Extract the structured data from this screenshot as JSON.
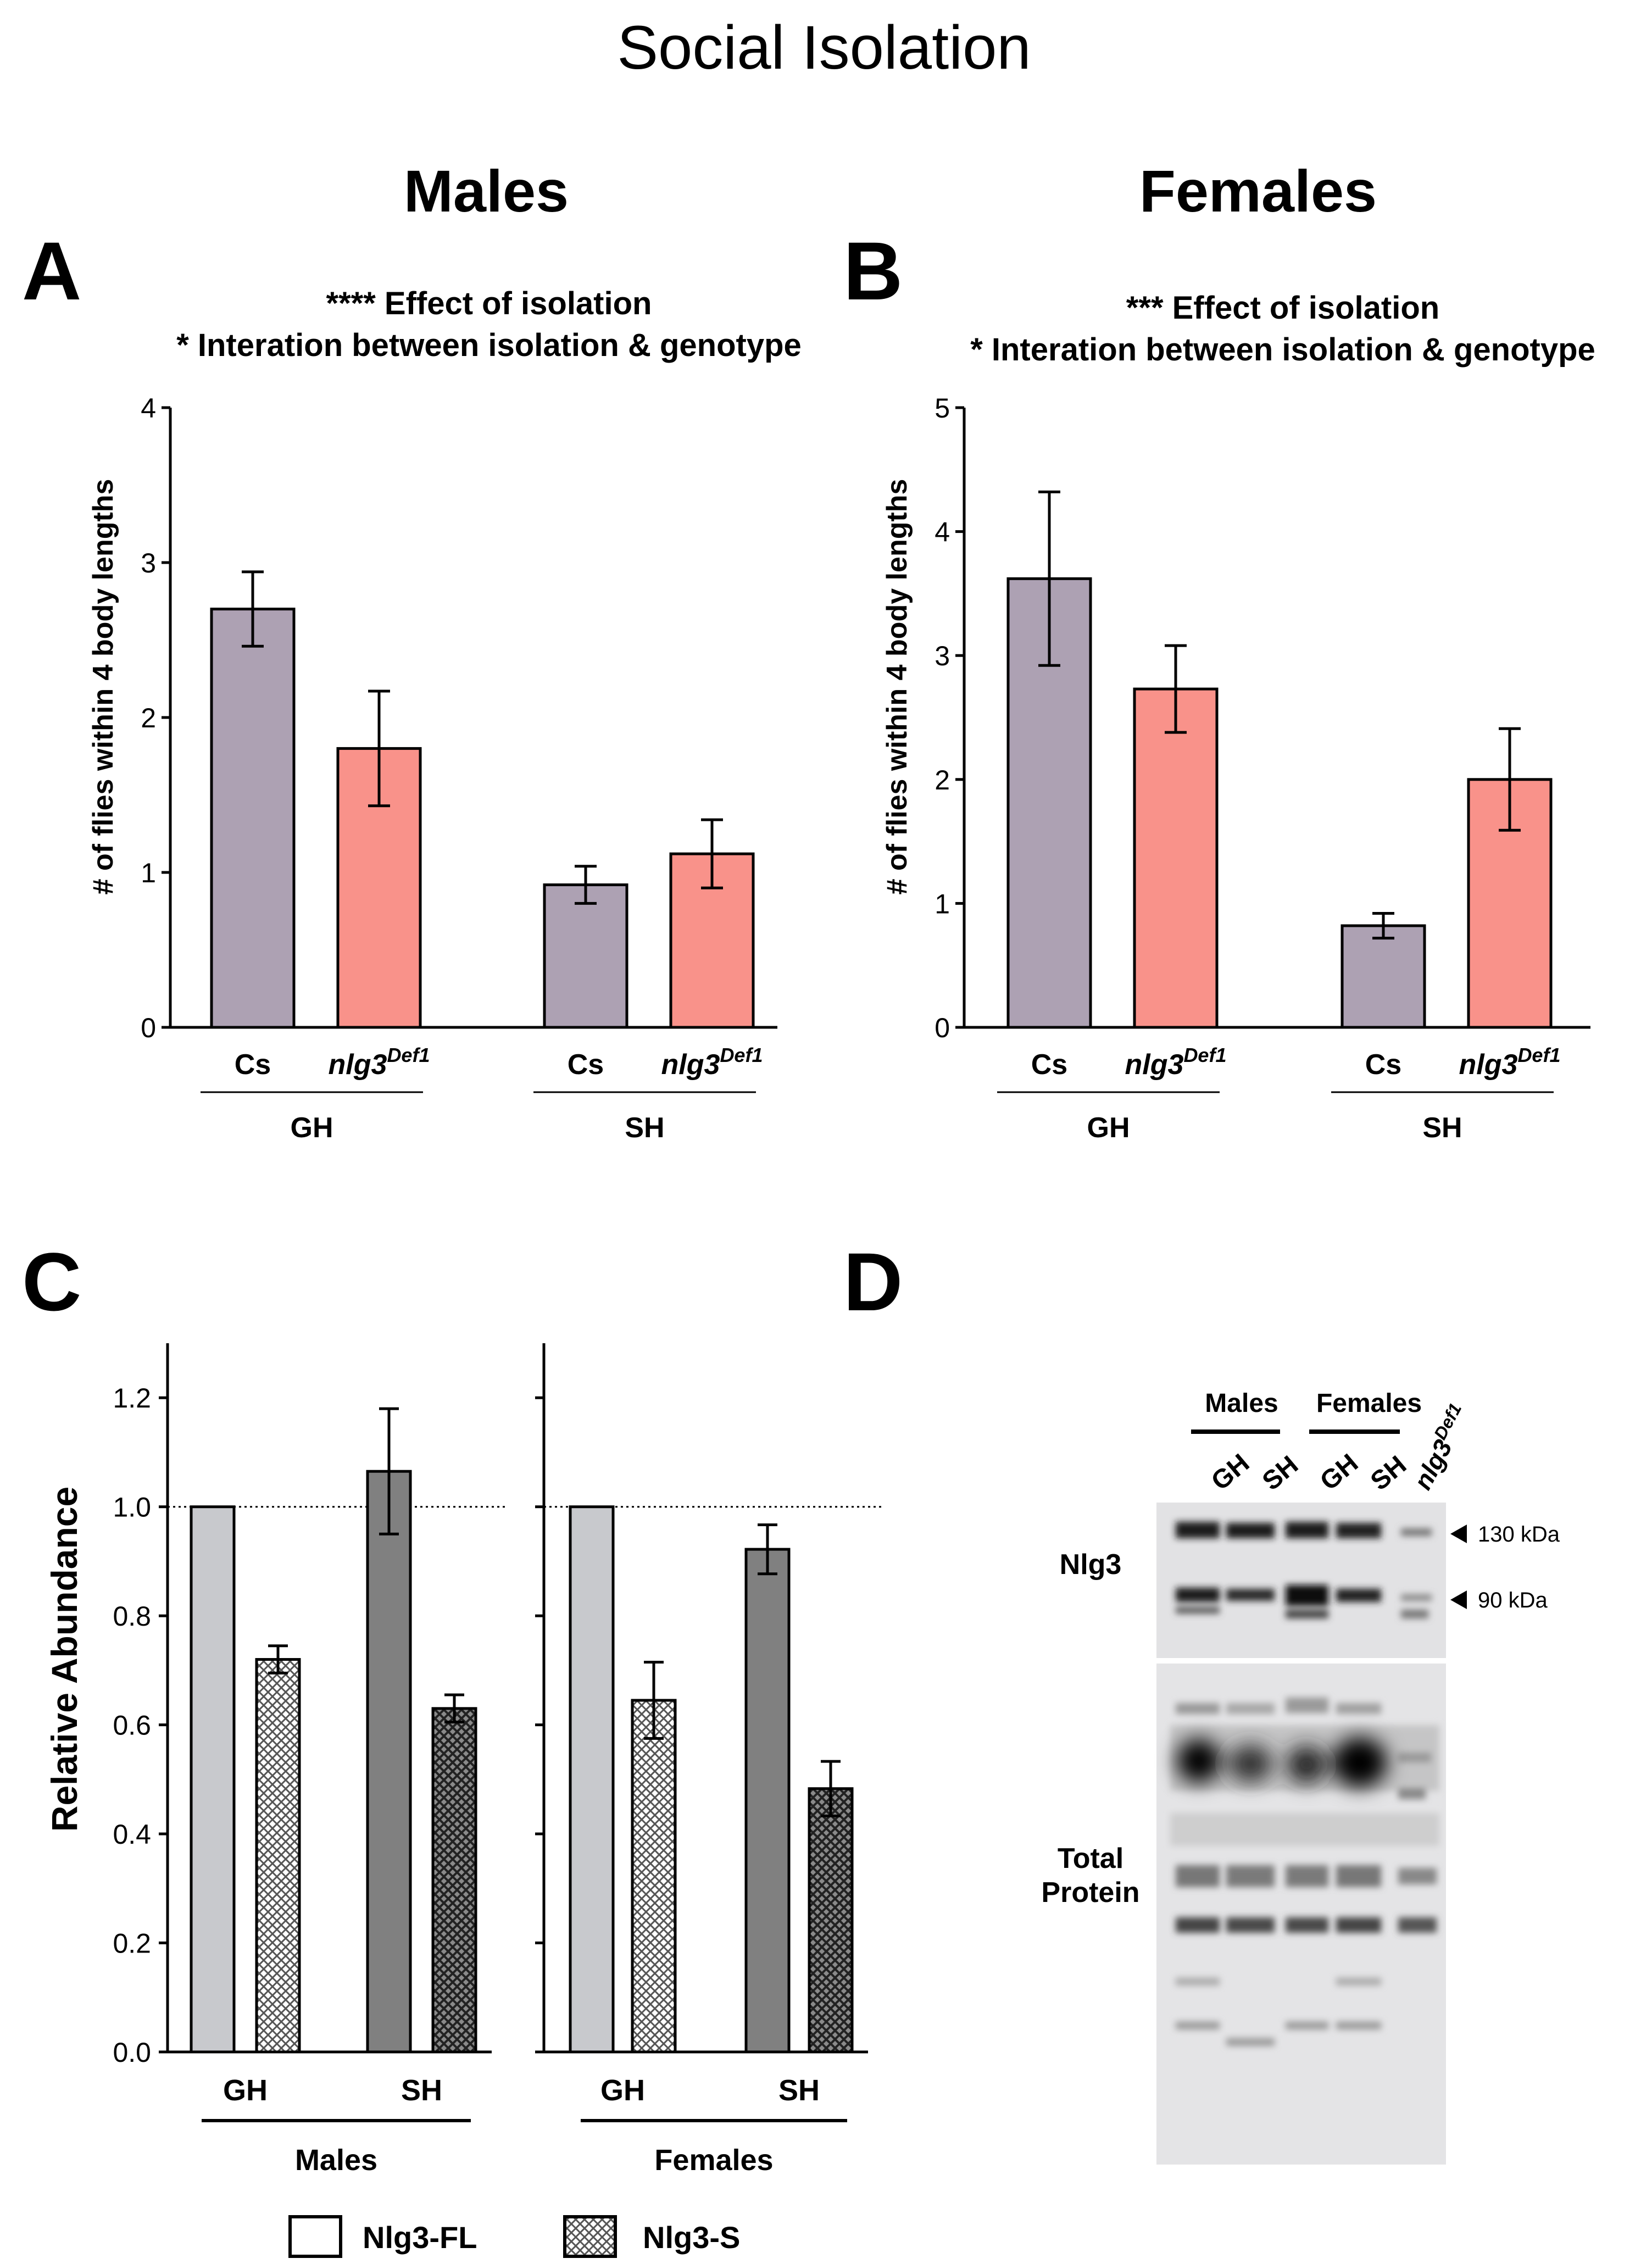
{
  "figure": {
    "title": "Social Isolation",
    "colors": {
      "cs_bar": "#ADA1B3",
      "nlg3_bar": "#F9928A",
      "fl_gh": "#C8C9CD",
      "fl_sh": "#808080",
      "s_gh_hatch": "#DADADA",
      "s_sh_hatch": "#6B6B6B",
      "axis": "#000000"
    }
  },
  "chart_data": [
    {
      "id": "A",
      "type": "bar",
      "panel_letter": "A",
      "header": "Males",
      "annotations": [
        "**** Effect of isolation",
        "* Interation between isolation & genotype"
      ],
      "ylabel": "# of flies within 4 body lengths",
      "ylim": [
        0,
        4
      ],
      "yticks": [
        "0",
        "1",
        "2",
        "3",
        "4"
      ],
      "groups": [
        {
          "label": "GH",
          "bars": [
            {
              "label": "Cs",
              "sup": "",
              "value": 2.7,
              "err": 0.24,
              "color_key": "cs"
            },
            {
              "label": "nlg3",
              "sup": "Def1",
              "value": 1.8,
              "err": 0.37,
              "color_key": "nlg3"
            }
          ]
        },
        {
          "label": "SH",
          "bars": [
            {
              "label": "Cs",
              "sup": "",
              "value": 0.92,
              "err": 0.12,
              "color_key": "cs"
            },
            {
              "label": "nlg3",
              "sup": "Def1",
              "value": 1.12,
              "err": 0.22,
              "color_key": "nlg3"
            }
          ]
        }
      ]
    },
    {
      "id": "B",
      "type": "bar",
      "panel_letter": "B",
      "header": "Females",
      "annotations": [
        "*** Effect of isolation",
        "* Interation between isolation & genotype"
      ],
      "ylabel": "# of flies within 4 body lengths",
      "ylim": [
        0,
        5
      ],
      "yticks": [
        "0",
        "1",
        "2",
        "3",
        "4",
        "5"
      ],
      "groups": [
        {
          "label": "GH",
          "bars": [
            {
              "label": "Cs",
              "sup": "",
              "value": 3.62,
              "err": 0.7,
              "color_key": "cs"
            },
            {
              "label": "nlg3",
              "sup": "Def1",
              "value": 2.73,
              "err": 0.35,
              "color_key": "nlg3"
            }
          ]
        },
        {
          "label": "SH",
          "bars": [
            {
              "label": "Cs",
              "sup": "",
              "value": 0.82,
              "err": 0.1,
              "color_key": "cs"
            },
            {
              "label": "nlg3",
              "sup": "Def1",
              "value": 2.0,
              "err": 0.41,
              "color_key": "nlg3"
            }
          ]
        }
      ]
    },
    {
      "id": "C",
      "type": "bar",
      "panel_letter": "C",
      "ylabel": "Relative Abundance",
      "ylim": [
        0,
        1.3
      ],
      "yticks": [
        "0.0",
        "0.2",
        "0.4",
        "0.6",
        "0.8",
        "1.0",
        "1.2"
      ],
      "reference_line": 1.0,
      "subpanels": [
        {
          "label": "Males",
          "groups": [
            {
              "label": "GH",
              "bars": [
                {
                  "series": "Nlg3-FL",
                  "value": 1.0,
                  "err": 0
                },
                {
                  "series": "Nlg3-S",
                  "value": 0.72,
                  "err": 0.025
                }
              ]
            },
            {
              "label": "SH",
              "bars": [
                {
                  "series": "Nlg3-FL",
                  "value": 1.065,
                  "err": 0.115
                },
                {
                  "series": "Nlg3-S",
                  "value": 0.63,
                  "err": 0.025
                }
              ]
            }
          ]
        },
        {
          "label": "Females",
          "groups": [
            {
              "label": "GH",
              "bars": [
                {
                  "series": "Nlg3-FL",
                  "value": 1.0,
                  "err": 0
                },
                {
                  "series": "Nlg3-S",
                  "value": 0.645,
                  "err": 0.07
                }
              ]
            },
            {
              "label": "SH",
              "bars": [
                {
                  "series": "Nlg3-FL",
                  "value": 0.922,
                  "err": 0.045
                },
                {
                  "series": "Nlg3-S",
                  "value": 0.483,
                  "err": 0.05
                }
              ]
            }
          ]
        }
      ],
      "legend": [
        {
          "label": "Nlg3-FL",
          "pattern": "solid"
        },
        {
          "label": "Nlg3-S",
          "pattern": "hatch"
        }
      ]
    }
  ],
  "blot": {
    "panel_letter": "D",
    "group_labels": [
      "Males",
      "Females"
    ],
    "lane_labels": [
      "GH",
      "SH",
      "GH",
      "SH"
    ],
    "mutant_lane": {
      "label": "nlg3",
      "sup": "Def1"
    },
    "row_label_top": "Nlg3",
    "row_label_bottom_line1": "Total",
    "row_label_bottom_line2": "Protein",
    "markers": [
      "130 kDa",
      "90 kDa"
    ]
  }
}
